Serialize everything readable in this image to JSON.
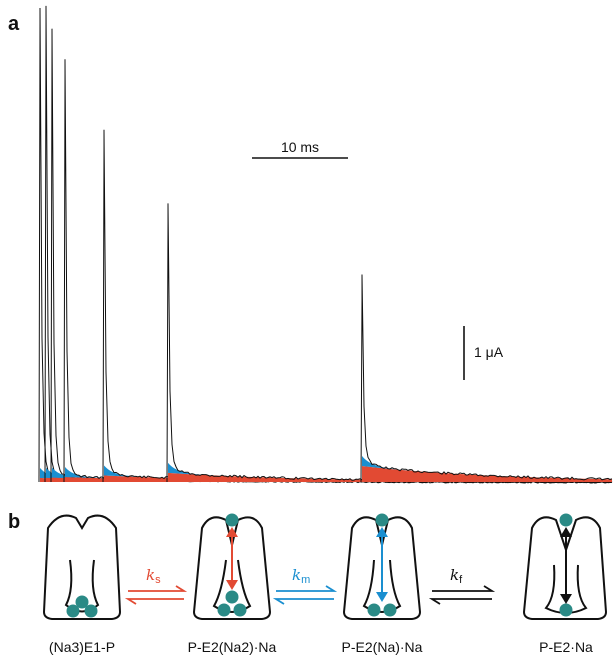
{
  "panel_a": {
    "label": "a",
    "time_scale": "10 ms",
    "current_scale": "1 μA"
  },
  "panel_b": {
    "label": "b",
    "states": [
      {
        "label": "(Na3)E1-P"
      },
      {
        "label": "P-E2(Na2)·Na"
      },
      {
        "label": "P-E2(Na)·Na"
      },
      {
        "label": "P-E2·Na"
      }
    ],
    "rates": [
      {
        "symbol": "k",
        "sub": "s",
        "color": "#e24a33"
      },
      {
        "symbol": "k",
        "sub": "m",
        "color": "#1a8fd0"
      },
      {
        "symbol": "k",
        "sub": "f",
        "color": "#111111"
      }
    ]
  },
  "colors": {
    "trace": "#111111",
    "slow": "#e24a33",
    "medium": "#1a8fd0",
    "ion": "#2a8a86"
  }
}
